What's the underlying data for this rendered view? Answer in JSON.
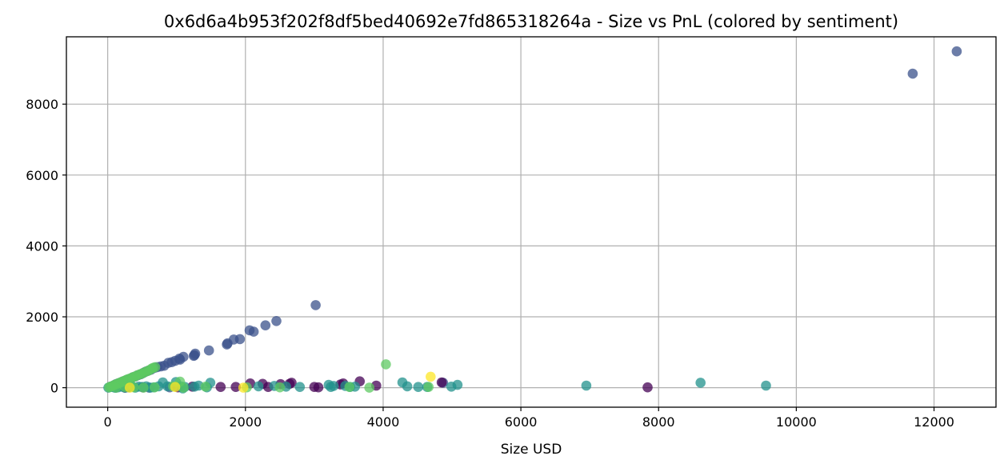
{
  "chart_data": {
    "type": "scatter",
    "title": "0x6d6a4b953f202f8df5bed40692e7fd865318264a - Size vs PnL (colored by sentiment)",
    "xlabel": "Size USD",
    "ylabel": "",
    "xlim": [
      -600,
      12900
    ],
    "ylim": [
      -550,
      9900
    ],
    "xticks": [
      0,
      2000,
      4000,
      6000,
      8000,
      10000,
      12000
    ],
    "yticks": [
      0,
      2000,
      4000,
      6000,
      8000
    ],
    "grid": true,
    "legend": "none",
    "colormap": "viridis",
    "colors": {
      "extreme_fear": "#440154",
      "fear": "#3b528b",
      "neutral": "#21918c",
      "greed": "#5ec962",
      "extreme_greed": "#fde725"
    },
    "series": [
      {
        "color_key": "fear",
        "points": [
          [
            12330,
            9490
          ],
          [
            11690,
            8860
          ],
          [
            3020,
            2330
          ],
          [
            2450,
            1880
          ],
          [
            2290,
            1760
          ],
          [
            2120,
            1580
          ],
          [
            2060,
            1620
          ],
          [
            1920,
            1370
          ],
          [
            1830,
            1360
          ],
          [
            1740,
            1250
          ],
          [
            1730,
            1220
          ],
          [
            1470,
            1050
          ],
          [
            1270,
            960
          ],
          [
            1260,
            920
          ],
          [
            1250,
            900
          ],
          [
            1100,
            870
          ],
          [
            1050,
            790
          ],
          [
            1040,
            820
          ],
          [
            980,
            760
          ],
          [
            930,
            720
          ],
          [
            880,
            700
          ],
          [
            820,
            620
          ],
          [
            770,
            600
          ],
          [
            720,
            580
          ],
          [
            680,
            560
          ],
          [
            630,
            510
          ],
          [
            600,
            490
          ],
          [
            560,
            460
          ],
          [
            520,
            420
          ],
          [
            480,
            380
          ],
          [
            440,
            350
          ],
          [
            400,
            320
          ],
          [
            360,
            290
          ],
          [
            320,
            250
          ],
          [
            280,
            220
          ],
          [
            240,
            190
          ],
          [
            200,
            160
          ],
          [
            160,
            130
          ],
          [
            120,
            100
          ],
          [
            80,
            60
          ],
          [
            40,
            30
          ],
          [
            4870,
            140
          ],
          [
            120,
            0
          ],
          [
            300,
            10
          ],
          [
            600,
            0
          ],
          [
            900,
            10
          ]
        ]
      },
      {
        "color_key": "extreme_fear",
        "points": [
          [
            7840,
            10
          ],
          [
            3900,
            60
          ],
          [
            3660,
            180
          ],
          [
            3420,
            120
          ],
          [
            3380,
            90
          ],
          [
            3060,
            10
          ],
          [
            3000,
            20
          ],
          [
            2670,
            140
          ],
          [
            2640,
            110
          ],
          [
            2510,
            100
          ],
          [
            2330,
            20
          ],
          [
            2250,
            110
          ],
          [
            2070,
            120
          ],
          [
            1860,
            20
          ],
          [
            1640,
            20
          ],
          [
            1230,
            30
          ],
          [
            1020,
            10
          ],
          [
            510,
            10
          ],
          [
            250,
            0
          ],
          [
            4850,
            150
          ]
        ]
      },
      {
        "color_key": "neutral",
        "points": [
          [
            9560,
            60
          ],
          [
            8610,
            140
          ],
          [
            6950,
            60
          ],
          [
            5080,
            80
          ],
          [
            4990,
            30
          ],
          [
            4640,
            20
          ],
          [
            4510,
            20
          ],
          [
            4350,
            40
          ],
          [
            4280,
            150
          ],
          [
            3590,
            30
          ],
          [
            3520,
            20
          ],
          [
            3450,
            50
          ],
          [
            3280,
            50
          ],
          [
            3240,
            20
          ],
          [
            3210,
            80
          ],
          [
            2790,
            20
          ],
          [
            2590,
            30
          ],
          [
            2420,
            50
          ],
          [
            2190,
            40
          ],
          [
            1490,
            140
          ],
          [
            1320,
            60
          ],
          [
            1120,
            20
          ],
          [
            1090,
            -20
          ],
          [
            1060,
            40
          ],
          [
            990,
            160
          ],
          [
            870,
            40
          ],
          [
            800,
            150
          ],
          [
            740,
            40
          ],
          [
            670,
            10
          ],
          [
            620,
            0
          ],
          [
            560,
            40
          ],
          [
            500,
            20
          ],
          [
            450,
            30
          ],
          [
            400,
            0
          ],
          [
            350,
            40
          ],
          [
            300,
            20
          ],
          [
            250,
            0
          ],
          [
            200,
            30
          ],
          [
            150,
            10
          ],
          [
            100,
            0
          ],
          [
            50,
            20
          ],
          [
            10,
            0
          ],
          [
            1260,
            30
          ],
          [
            1440,
            10
          ]
        ]
      },
      {
        "color_key": "greed",
        "points": [
          [
            4040,
            660
          ],
          [
            4660,
            20
          ],
          [
            3510,
            20
          ],
          [
            2500,
            10
          ],
          [
            2020,
            10
          ],
          [
            1420,
            30
          ],
          [
            1050,
            170
          ],
          [
            950,
            40
          ],
          [
            690,
            580
          ],
          [
            660,
            560
          ],
          [
            640,
            540
          ],
          [
            610,
            500
          ],
          [
            580,
            470
          ],
          [
            540,
            440
          ],
          [
            500,
            400
          ],
          [
            470,
            380
          ],
          [
            430,
            350
          ],
          [
            400,
            320
          ],
          [
            370,
            300
          ],
          [
            340,
            270
          ],
          [
            310,
            250
          ],
          [
            280,
            230
          ],
          [
            250,
            200
          ],
          [
            220,
            180
          ],
          [
            190,
            150
          ],
          [
            160,
            130
          ],
          [
            130,
            100
          ],
          [
            100,
            80
          ],
          [
            70,
            50
          ],
          [
            40,
            30
          ],
          [
            20,
            10
          ],
          [
            120,
            0
          ],
          [
            250,
            20
          ],
          [
            380,
            10
          ],
          [
            520,
            0
          ],
          [
            1100,
            0
          ],
          [
            3800,
            0
          ],
          [
            680,
            10
          ]
        ]
      },
      {
        "color_key": "extreme_greed",
        "points": [
          [
            4690,
            310
          ],
          [
            1970,
            0
          ],
          [
            980,
            20
          ],
          [
            320,
            0
          ]
        ]
      }
    ]
  }
}
